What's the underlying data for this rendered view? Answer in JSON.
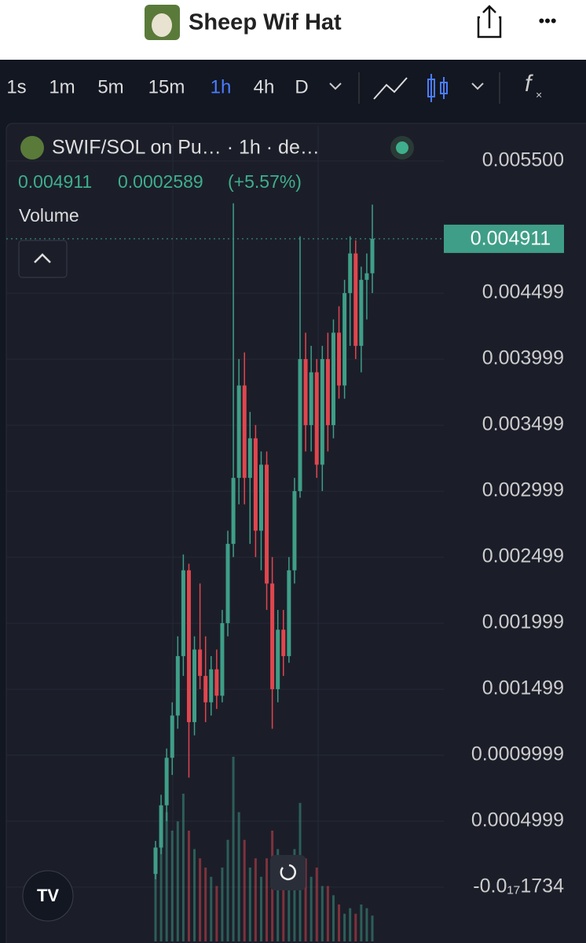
{
  "header": {
    "title": "Sheep Wif Hat",
    "more": "•••"
  },
  "toolbar": {
    "intervals": [
      "1s",
      "1m",
      "5m",
      "15m",
      "1h",
      "4h",
      "D"
    ],
    "active": 4,
    "fx": "f"
  },
  "legend": {
    "symbol": "SWIF/SOL on Pu… · 1h · de…",
    "price": "0.004911",
    "change": "0.0002589",
    "change_pct": "(+5.57%)",
    "volume": "Volume"
  },
  "chart_data": {
    "type": "candlestick",
    "up_color": "#3f9e87",
    "down_color": "#e0464e",
    "ylim": [
      -0.000423,
      0.005827
    ],
    "yticks": [
      {
        "value": 0.0055,
        "label": "0.005500"
      },
      0.004499,
      0.003999,
      0.003499,
      0.002999,
      0.002499,
      0.001999,
      0.001499,
      0.0009999,
      0.0004999,
      {
        "value": -1.734e-20,
        "label": "-0.0₁₇1734"
      }
    ],
    "last_price": 0.004911,
    "open": [
      0.0001,
      0.0003,
      0.00062,
      0.00098,
      0.0013,
      0.00175,
      0.0024,
      0.00125,
      0.0018,
      0.0016,
      0.0014,
      0.00165,
      0.00145,
      0.002,
      0.0026,
      0.0031,
      0.0038,
      0.0031,
      0.0034,
      0.0027,
      0.0032,
      0.0023,
      0.0015,
      0.00195,
      0.00175,
      0.0024,
      0.003,
      0.004,
      0.0035,
      0.0039,
      0.0032,
      0.004,
      0.0035,
      0.0042,
      0.0038,
      0.0045,
      0.0048,
      0.0041,
      0.0046,
      0.00465
    ],
    "high": [
      0.00035,
      0.0007,
      0.00105,
      0.0014,
      0.0019,
      0.00252,
      0.00245,
      0.0019,
      0.0023,
      0.0019,
      0.00175,
      0.0018,
      0.0021,
      0.0027,
      0.00518,
      0.004,
      0.00405,
      0.0036,
      0.0035,
      0.0033,
      0.0033,
      0.0025,
      0.0021,
      0.0021,
      0.0025,
      0.0031,
      0.00493,
      0.0042,
      0.0041,
      0.004,
      0.0041,
      0.0042,
      0.0043,
      0.0044,
      0.0046,
      0.00493,
      0.0049,
      0.0047,
      0.0048,
      0.00517
    ],
    "low": [
      6e-05,
      0.00025,
      0.0005,
      0.00085,
      0.0012,
      0.0016,
      0.00083,
      0.00115,
      0.0015,
      0.00125,
      0.0013,
      0.00135,
      0.0014,
      0.0019,
      0.0025,
      0.0029,
      0.0029,
      0.0026,
      0.0025,
      0.0024,
      0.0021,
      0.0012,
      0.0014,
      0.0016,
      0.0017,
      0.0023,
      0.00295,
      0.0033,
      0.0033,
      0.0031,
      0.003,
      0.0033,
      0.0034,
      0.0037,
      0.0037,
      0.0041,
      0.004,
      0.0039,
      0.0043,
      0.0045
    ],
    "close": [
      0.0003,
      0.00062,
      0.00098,
      0.0013,
      0.00175,
      0.0024,
      0.00125,
      0.0018,
      0.0016,
      0.0014,
      0.00165,
      0.00145,
      0.002,
      0.0026,
      0.0031,
      0.0038,
      0.0031,
      0.0034,
      0.0027,
      0.0032,
      0.0023,
      0.0015,
      0.00195,
      0.00175,
      0.0024,
      0.003,
      0.004,
      0.0035,
      0.0039,
      0.0032,
      0.004,
      0.0035,
      0.0042,
      0.0038,
      0.0045,
      0.0048,
      0.0041,
      0.0046,
      0.00465,
      0.004911
    ],
    "vlim": [
      0,
      100
    ],
    "volume": [
      40,
      55,
      70,
      60,
      65,
      80,
      60,
      50,
      45,
      40,
      35,
      30,
      40,
      55,
      100,
      70,
      55,
      40,
      45,
      35,
      45,
      60,
      50,
      30,
      40,
      50,
      75,
      45,
      35,
      40,
      30,
      30,
      25,
      20,
      15,
      18,
      15,
      20,
      18,
      14
    ]
  }
}
